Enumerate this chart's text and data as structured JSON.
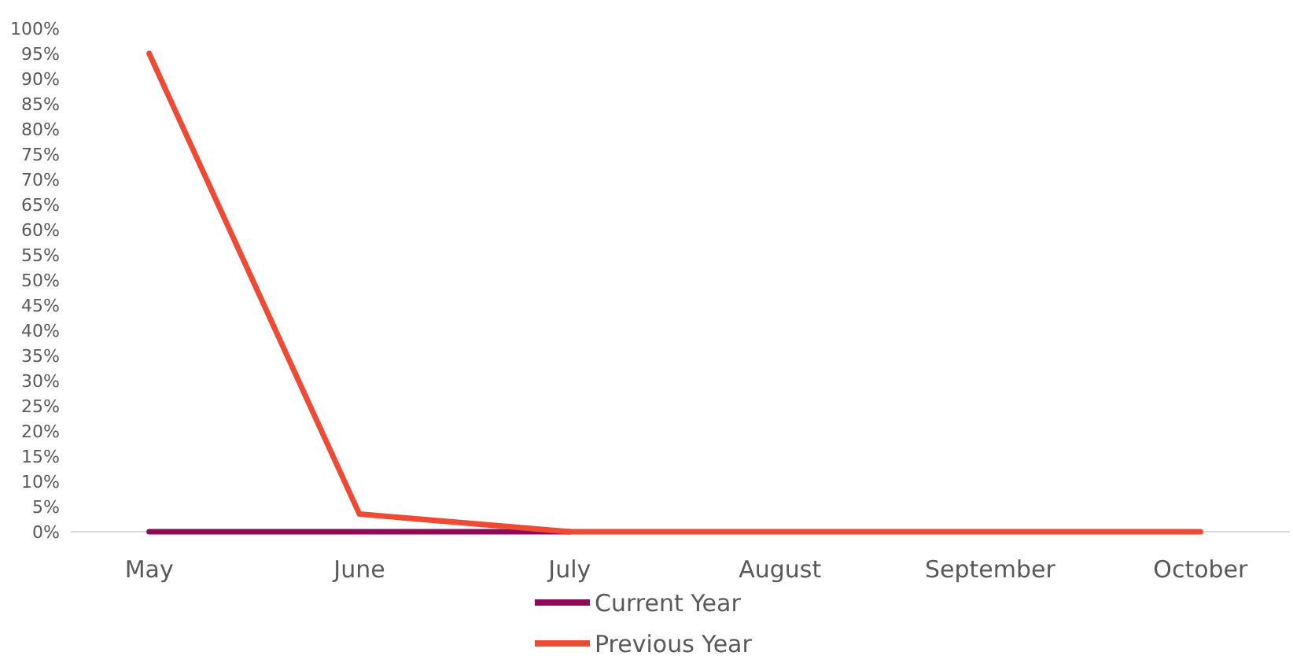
{
  "chart_data": {
    "type": "line",
    "categories": [
      "May",
      "June",
      "July",
      "August",
      "September",
      "October"
    ],
    "series": [
      {
        "name": "Current Year",
        "color": "#8b0d5a",
        "values": [
          0,
          0,
          0,
          null,
          null,
          null
        ]
      },
      {
        "name": "Previous Year",
        "color": "#ef4a34",
        "values": [
          95,
          3.5,
          0,
          0,
          0,
          0
        ]
      }
    ],
    "ylim": [
      0,
      100
    ],
    "yticks": [
      {
        "value": 0,
        "label": "0%"
      },
      {
        "value": 5,
        "label": "5%"
      },
      {
        "value": 10,
        "label": "10%"
      },
      {
        "value": 15,
        "label": "15%"
      },
      {
        "value": 20,
        "label": "20%"
      },
      {
        "value": 25,
        "label": "25%"
      },
      {
        "value": 30,
        "label": "30%"
      },
      {
        "value": 35,
        "label": "35%"
      },
      {
        "value": 40,
        "label": "40%"
      },
      {
        "value": 45,
        "label": "45%"
      },
      {
        "value": 50,
        "label": "50%"
      },
      {
        "value": 55,
        "label": "55%"
      },
      {
        "value": 60,
        "label": "60%"
      },
      {
        "value": 65,
        "label": "65%"
      },
      {
        "value": 70,
        "label": "70%"
      },
      {
        "value": 75,
        "label": "75%"
      },
      {
        "value": 80,
        "label": "80%"
      },
      {
        "value": 85,
        "label": "85%"
      },
      {
        "value": 90,
        "label": "90%"
      },
      {
        "value": 95,
        "label": "95%"
      },
      {
        "value": 100,
        "label": "100%"
      }
    ],
    "grid": false,
    "legend": "bottom",
    "marker": "none",
    "line_style": "solid"
  }
}
